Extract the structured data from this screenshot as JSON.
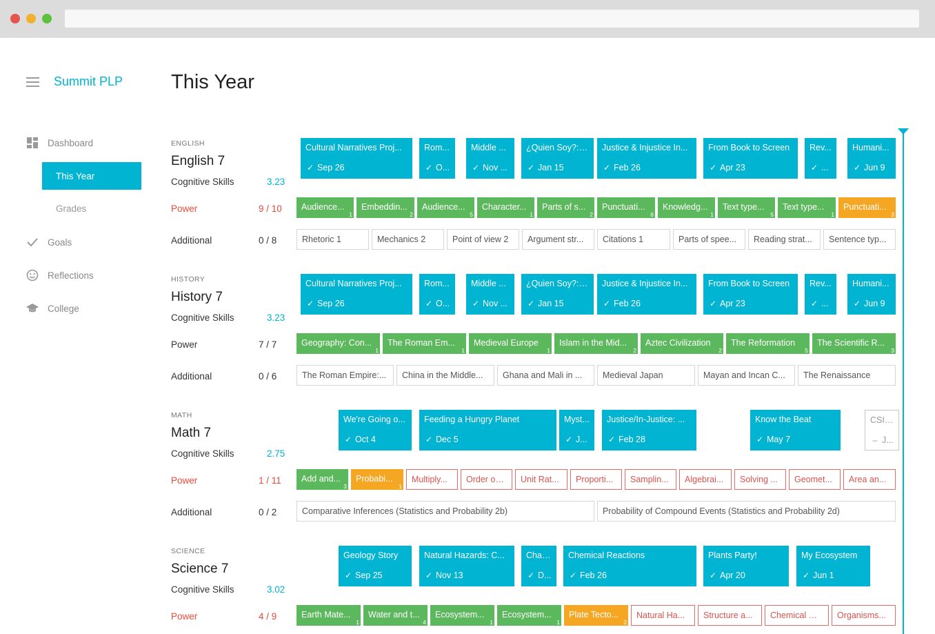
{
  "browser": {
    "url": ""
  },
  "app": {
    "name": "Summit PLP",
    "page_title": "This Year"
  },
  "sidebar": {
    "items": [
      {
        "label": "Dashboard",
        "icon": "dashboard-icon"
      },
      {
        "label": "This Year",
        "active": true
      },
      {
        "label": "Grades"
      },
      {
        "label": "Goals",
        "icon": "check-icon"
      },
      {
        "label": "Reflections",
        "icon": "smiley-icon"
      },
      {
        "label": "College",
        "icon": "graduation-cap-icon"
      }
    ]
  },
  "colors": {
    "accent": "#00b4d2",
    "power_done": "#5cb85c",
    "power_partial": "#f5a623",
    "power_missing": "#e66b66"
  },
  "subjects": [
    {
      "category": "ENGLISH",
      "name": "English 7",
      "cognitive": {
        "label": "Cognitive Skills",
        "value": "3.23"
      },
      "power": {
        "label": "Power",
        "value": "9 / 10"
      },
      "additional": {
        "label": "Additional",
        "value": "0 / 8"
      },
      "projects": [
        {
          "title": "Cultural Narratives Proj...",
          "date": "Sep 26"
        },
        {
          "title": "Rom...",
          "date": "O..."
        },
        {
          "title": "Middle ...",
          "date": "Nov ..."
        },
        {
          "title": "¿Quien Soy?: T...",
          "date": "Jan 15"
        },
        {
          "title": "Justice & Injustice In...",
          "date": "Feb 26"
        },
        {
          "title": "From Book to Screen",
          "date": "Apr 23"
        },
        {
          "title": "Rev...",
          "date": "..."
        },
        {
          "title": "Humani...",
          "date": "Jun 9"
        }
      ],
      "power_items": [
        {
          "label": "Audience...",
          "count": "1"
        },
        {
          "label": "Embeddin...",
          "count": "2"
        },
        {
          "label": "Audience...",
          "count": "5"
        },
        {
          "label": "Character...",
          "count": "1"
        },
        {
          "label": "Parts of s...",
          "count": "2"
        },
        {
          "label": "Punctuati...",
          "count": "6"
        },
        {
          "label": "Knowledg...",
          "count": "1"
        },
        {
          "label": "Text type...",
          "count": "5"
        },
        {
          "label": "Text type...",
          "count": "1"
        },
        {
          "label": "Punctuati...",
          "count": "3"
        }
      ],
      "additional_items": [
        "Rhetoric 1",
        "Mechanics 2",
        "Point of view 2",
        "Argument str...",
        "Citations 1",
        "Parts of spee...",
        "Reading strat...",
        "Sentence typ..."
      ]
    },
    {
      "category": "HISTORY",
      "name": "History 7",
      "cognitive": {
        "label": "Cognitive Skills",
        "value": "3.23"
      },
      "power": {
        "label": "Power",
        "value": "7 / 7"
      },
      "additional": {
        "label": "Additional",
        "value": "0 / 6"
      },
      "projects": [
        {
          "title": "Cultural Narratives Proj...",
          "date": "Sep 26"
        },
        {
          "title": "Rom...",
          "date": "O..."
        },
        {
          "title": "Middle ...",
          "date": "Nov ..."
        },
        {
          "title": "¿Quien Soy?: T...",
          "date": "Jan 15"
        },
        {
          "title": "Justice & Injustice In...",
          "date": "Feb 26"
        },
        {
          "title": "From Book to Screen",
          "date": "Apr 23"
        },
        {
          "title": "Rev...",
          "date": "..."
        },
        {
          "title": "Humani...",
          "date": "Jun 9"
        }
      ],
      "power_items": [
        {
          "label": "Geography: Con...",
          "count": "1"
        },
        {
          "label": "The Roman Em...",
          "count": "1"
        },
        {
          "label": "Medieval Europe",
          "count": "1"
        },
        {
          "label": "Islam in the Mid...",
          "count": "2"
        },
        {
          "label": "Aztec Civilization",
          "count": "2"
        },
        {
          "label": "The Reformation",
          "count": "5"
        },
        {
          "label": "The Scientific R...",
          "count": "3"
        }
      ],
      "additional_items": [
        "The Roman Empire:...",
        "China in the Middle...",
        "Ghana and Mali in ...",
        "Medieval Japan",
        "Mayan and Incan C...",
        "The Renaissance"
      ]
    },
    {
      "category": "MATH",
      "name": "Math 7",
      "cognitive": {
        "label": "Cognitive Skills",
        "value": "2.75"
      },
      "power": {
        "label": "Power",
        "value": "1 / 11"
      },
      "additional": {
        "label": "Additional",
        "value": "0 / 2"
      },
      "projects": [
        {
          "title": "We're Going o...",
          "date": "Oct 4"
        },
        {
          "title": "Feeding a Hungry Planet",
          "date": "Dec 5"
        },
        {
          "title": "Myst...",
          "date": "J..."
        },
        {
          "title": "Justice/In-Justice: ...",
          "date": "Feb 28"
        },
        {
          "title": "Know the Beat",
          "date": "May 7"
        },
        {
          "title": "CSI: ...",
          "date": "J..."
        }
      ],
      "power_items": [
        {
          "label": "Add and...",
          "count": "3"
        },
        {
          "label": "Probabi...",
          "count": "1"
        },
        {
          "label": "Multiply...",
          "count": ""
        },
        {
          "label": "Order of...",
          "count": ""
        },
        {
          "label": "Unit Rat...",
          "count": ""
        },
        {
          "label": "Proporti...",
          "count": ""
        },
        {
          "label": "Samplin...",
          "count": ""
        },
        {
          "label": "Algebrai...",
          "count": ""
        },
        {
          "label": "Solving ...",
          "count": ""
        },
        {
          "label": "Geomet...",
          "count": ""
        },
        {
          "label": "Area an...",
          "count": ""
        }
      ],
      "additional_items": [
        "Comparative Inferences (Statistics and Probability 2b)",
        "Probability of Compound Events (Statistics and Probability 2d)"
      ]
    },
    {
      "category": "SCIENCE",
      "name": "Science 7",
      "cognitive": {
        "label": "Cognitive Skills",
        "value": "3.02"
      },
      "power": {
        "label": "Power",
        "value": "4 / 9"
      },
      "projects": [
        {
          "title": "Geology Story",
          "date": "Sep 25"
        },
        {
          "title": "Natural Hazards: C...",
          "date": "Nov 13"
        },
        {
          "title": "Chan...",
          "date": "D..."
        },
        {
          "title": "Chemical Reactions",
          "date": "Feb 26"
        },
        {
          "title": "Plants Party!",
          "date": "Apr 20"
        },
        {
          "title": "My Ecosystem",
          "date": "Jun 1"
        }
      ],
      "power_items": [
        {
          "label": "Earth Mate...",
          "count": "1"
        },
        {
          "label": "Water and t...",
          "count": "4"
        },
        {
          "label": "Ecosystem...",
          "count": "1"
        },
        {
          "label": "Ecosystem...",
          "count": "1"
        },
        {
          "label": "Plate Tecto...",
          "count": "2"
        },
        {
          "label": "Natural Ha...",
          "count": ""
        },
        {
          "label": "Structure a...",
          "count": ""
        },
        {
          "label": "Chemical R...",
          "count": ""
        },
        {
          "label": "Organisms...",
          "count": ""
        }
      ]
    }
  ]
}
